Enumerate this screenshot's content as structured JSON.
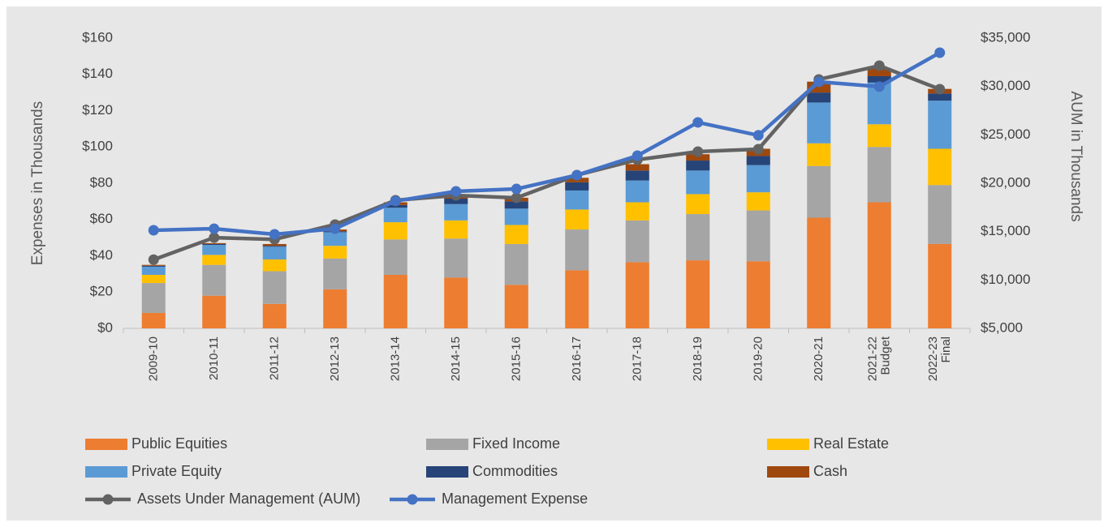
{
  "chart_data": {
    "type": "stacked-bar-line",
    "ylabel": "Expenses in Thousands",
    "y2label": "AUM in Thousands",
    "categories": [
      "2009-10",
      "2010-11",
      "2011-12",
      "2012-13",
      "2013-14",
      "2014-15",
      "2015-16",
      "2016-17",
      "2017-18",
      "2018-19",
      "2019-20",
      "2020-21",
      "2021-22\nBudget",
      "2022-23\nFinal"
    ],
    "series": [
      {
        "name": "Public Equities",
        "color": "#ed7d31",
        "kind": "bar",
        "values": [
          8.5,
          18,
          13.5,
          21.5,
          29.5,
          28,
          24,
          32,
          36.5,
          37.5,
          37,
          61,
          69.5,
          46.5
        ]
      },
      {
        "name": "Fixed Income",
        "color": "#a5a5a5",
        "kind": "bar",
        "values": [
          16.5,
          17,
          18,
          17,
          19.5,
          21.5,
          22.5,
          22.5,
          23,
          25.5,
          28,
          28.5,
          30.5,
          32.5
        ]
      },
      {
        "name": "Real Estate",
        "color": "#ffc000",
        "kind": "bar",
        "values": [
          4.5,
          5.5,
          6.5,
          7,
          9.5,
          10,
          10.5,
          11,
          10,
          11,
          10,
          12.5,
          12.5,
          20
        ]
      },
      {
        "name": "Private Equity",
        "color": "#5b9bd5",
        "kind": "bar",
        "values": [
          4.5,
          5.5,
          7,
          7.5,
          8,
          9,
          9,
          10.5,
          12,
          13,
          15,
          22.5,
          23,
          26.5
        ]
      },
      {
        "name": "Commodities",
        "color": "#264478",
        "kind": "bar",
        "values": [
          0.5,
          0.5,
          0.5,
          0.5,
          1.5,
          3,
          4,
          4.5,
          5.5,
          5.5,
          5,
          5.5,
          3.5,
          4
        ]
      },
      {
        "name": "Cash",
        "color": "#9e480e",
        "kind": "bar",
        "values": [
          0.5,
          0.5,
          1,
          1,
          1.5,
          1.5,
          2,
          2.5,
          3.5,
          3.5,
          4,
          6,
          4.5,
          2.5
        ]
      },
      {
        "name": "Assets Under Management (AUM)",
        "color": "#636363",
        "kind": "line",
        "axis": "y2",
        "values": [
          12100,
          14380,
          14200,
          15730,
          18240,
          18740,
          18490,
          20840,
          22430,
          23270,
          23520,
          30730,
          32150,
          29720
        ]
      },
      {
        "name": "Management Expense",
        "color": "#4472c4",
        "kind": "line",
        "axis": "y2",
        "values": [
          15140,
          15300,
          14720,
          15300,
          18160,
          19160,
          19410,
          20840,
          22850,
          26290,
          24950,
          30480,
          29980,
          33490
        ]
      }
    ],
    "ylim": [
      0,
      160
    ],
    "yticks": [
      {
        "value": 0,
        "label": "$0"
      },
      {
        "value": 20,
        "label": "$20"
      },
      {
        "value": 40,
        "label": "$40"
      },
      {
        "value": 60,
        "label": "$60"
      },
      {
        "value": 80,
        "label": "$80"
      },
      {
        "value": 100,
        "label": "$100"
      },
      {
        "value": 120,
        "label": "$120"
      },
      {
        "value": 140,
        "label": "$140"
      },
      {
        "value": 160,
        "label": "$160"
      }
    ],
    "y2lim": [
      5000,
      35000
    ],
    "y2ticks": [
      {
        "value": 5000,
        "label": "$5,000"
      },
      {
        "value": 10000,
        "label": "$10,000"
      },
      {
        "value": 15000,
        "label": "$15,000"
      },
      {
        "value": 20000,
        "label": "$20,000"
      },
      {
        "value": 25000,
        "label": "$25,000"
      },
      {
        "value": 30000,
        "label": "$30,000"
      },
      {
        "value": 35000,
        "label": "$35,000"
      }
    ],
    "grid": false,
    "legend": "bottom"
  }
}
